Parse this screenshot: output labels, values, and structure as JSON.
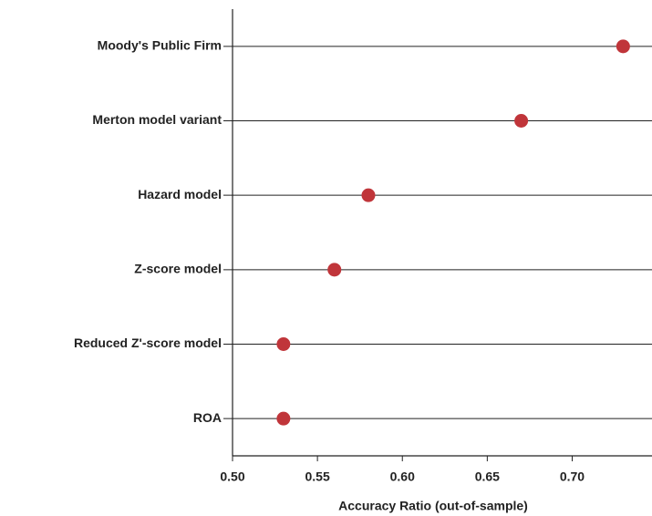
{
  "chart_data": {
    "type": "dot",
    "x_label": "Accuracy Ratio (out-of-sample)",
    "categories": [
      "Moody's Public Firm",
      "Merton model variant",
      "Hazard model",
      "Z-score model",
      "Reduced Z'-score model",
      "ROA"
    ],
    "values": [
      0.73,
      0.67,
      0.58,
      0.56,
      0.53,
      0.53
    ],
    "color": "#c0353a",
    "xlim": [
      0.5,
      0.747
    ],
    "xticks": [
      {
        "value": 0.5,
        "label": "0.50"
      },
      {
        "value": 0.55,
        "label": "0.55"
      },
      {
        "value": 0.6,
        "label": "0.60"
      },
      {
        "value": 0.65,
        "label": "0.65"
      },
      {
        "value": 0.7,
        "label": "0.70"
      }
    ]
  }
}
